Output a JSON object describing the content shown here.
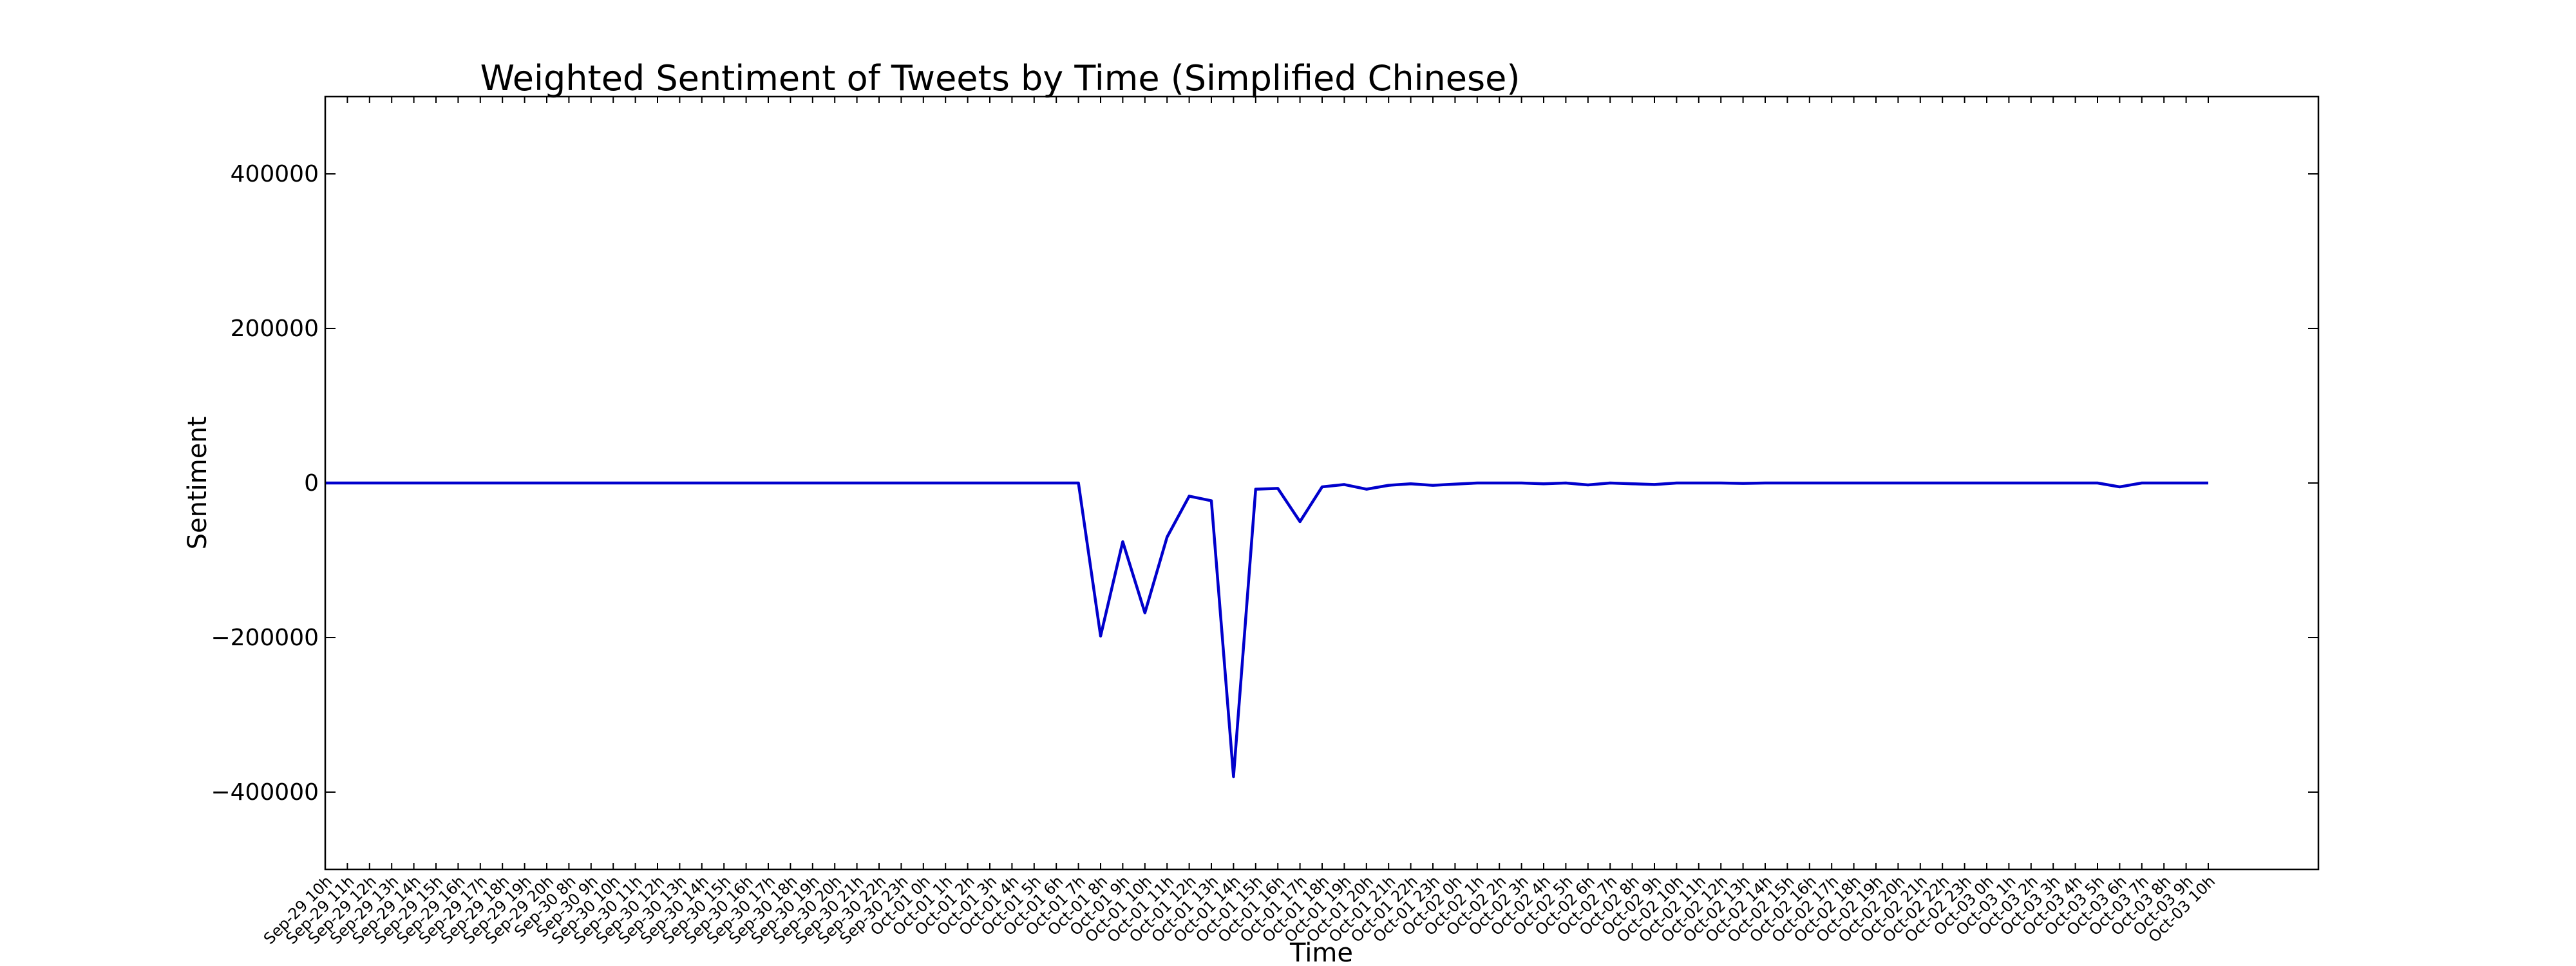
{
  "chart_data": {
    "type": "line",
    "title": "Weighted Sentiment of Tweets by Time (Simplified Chinese)",
    "xlabel": "Time",
    "ylabel": "Sentiment",
    "ylim": [
      -500000,
      500000
    ],
    "yticks": [
      -400000,
      -200000,
      0,
      200000,
      400000
    ],
    "ytick_labels": [
      "−400000",
      "−200000",
      "0",
      "200000",
      "400000"
    ],
    "grid": false,
    "line_color": "#0000cc",
    "categories": [
      "Sep-29 10h",
      "Sep-29 11h",
      "Sep-29 12h",
      "Sep-29 13h",
      "Sep-29 14h",
      "Sep-29 15h",
      "Sep-29 16h",
      "Sep-29 17h",
      "Sep-29 18h",
      "Sep-29 19h",
      "Sep-29 20h",
      "Sep-30 8h",
      "Sep-30 9h",
      "Sep-30 10h",
      "Sep-30 11h",
      "Sep-30 12h",
      "Sep-30 13h",
      "Sep-30 14h",
      "Sep-30 15h",
      "Sep-30 16h",
      "Sep-30 17h",
      "Sep-30 18h",
      "Sep-30 19h",
      "Sep-30 20h",
      "Sep-30 21h",
      "Sep-30 22h",
      "Sep-30 23h",
      "Oct-01 0h",
      "Oct-01 1h",
      "Oct-01 2h",
      "Oct-01 3h",
      "Oct-01 4h",
      "Oct-01 5h",
      "Oct-01 6h",
      "Oct-01 7h",
      "Oct-01 8h",
      "Oct-01 9h",
      "Oct-01 10h",
      "Oct-01 11h",
      "Oct-01 12h",
      "Oct-01 13h",
      "Oct-01 14h",
      "Oct-01 15h",
      "Oct-01 16h",
      "Oct-01 17h",
      "Oct-01 18h",
      "Oct-01 19h",
      "Oct-01 20h",
      "Oct-01 21h",
      "Oct-01 22h",
      "Oct-01 23h",
      "Oct-02 0h",
      "Oct-02 1h",
      "Oct-02 2h",
      "Oct-02 3h",
      "Oct-02 4h",
      "Oct-02 5h",
      "Oct-02 6h",
      "Oct-02 7h",
      "Oct-02 8h",
      "Oct-02 9h",
      "Oct-02 10h",
      "Oct-02 11h",
      "Oct-02 12h",
      "Oct-02 13h",
      "Oct-02 14h",
      "Oct-02 15h",
      "Oct-02 16h",
      "Oct-02 17h",
      "Oct-02 18h",
      "Oct-02 19h",
      "Oct-02 20h",
      "Oct-02 21h",
      "Oct-02 22h",
      "Oct-02 23h",
      "Oct-03 0h",
      "Oct-03 1h",
      "Oct-03 2h",
      "Oct-03 3h",
      "Oct-03 4h",
      "Oct-03 5h",
      "Oct-03 6h",
      "Oct-03 7h",
      "Oct-03 8h",
      "Oct-03 9h",
      "Oct-03 10h"
    ],
    "series": [
      {
        "values": [
          0,
          0,
          0,
          0,
          0,
          0,
          0,
          0,
          0,
          0,
          0,
          0,
          0,
          0,
          0,
          0,
          0,
          0,
          0,
          0,
          0,
          0,
          0,
          0,
          0,
          0,
          0,
          0,
          0,
          0,
          0,
          0,
          0,
          0,
          0,
          -198000,
          -76000,
          -168000,
          -70000,
          -17000,
          -23000,
          -380000,
          -8000,
          -7000,
          -50000,
          -5000,
          -2000,
          -8000,
          -3000,
          -1000,
          -3000,
          -1500,
          0,
          0,
          0,
          -1000,
          0,
          -2500,
          0,
          -1000,
          -2000,
          0,
          0,
          0,
          -500,
          0,
          0,
          0,
          0,
          0,
          0,
          0,
          0,
          0,
          0,
          0,
          0,
          0,
          0,
          0,
          0,
          -5000,
          0,
          0,
          0,
          0
        ]
      }
    ]
  }
}
